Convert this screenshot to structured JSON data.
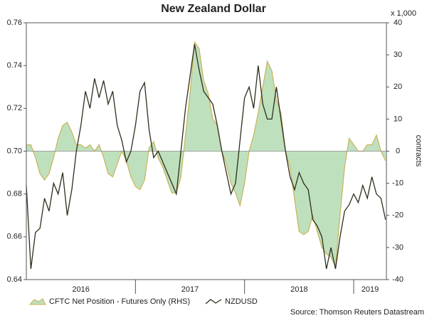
{
  "chart_data": {
    "type": "line",
    "title": "New Zealand Dollar",
    "y2_unit_label": "x 1,000",
    "y2label": "contracts",
    "source": "Source: Thomson Reuters Datastream",
    "x": [
      2016,
      2016.0417,
      2016.0833,
      2016.125,
      2016.1667,
      2016.2083,
      2016.25,
      2016.2917,
      2016.3333,
      2016.375,
      2016.4167,
      2016.4583,
      2016.5,
      2016.5417,
      2016.5833,
      2016.625,
      2016.6667,
      2016.7083,
      2016.75,
      2016.7917,
      2016.8333,
      2016.875,
      2016.9167,
      2016.9583,
      2017,
      2017.0417,
      2017.0833,
      2017.125,
      2017.1667,
      2017.2083,
      2017.25,
      2017.2917,
      2017.3333,
      2017.375,
      2017.4167,
      2017.4583,
      2017.5,
      2017.5417,
      2017.5833,
      2017.625,
      2017.6667,
      2017.7083,
      2017.75,
      2017.7917,
      2017.8333,
      2017.875,
      2017.9167,
      2017.9583,
      2018,
      2018.0417,
      2018.0833,
      2018.125,
      2018.1667,
      2018.2083,
      2018.25,
      2018.2917,
      2018.3333,
      2018.375,
      2018.4167,
      2018.4583,
      2018.5,
      2018.5417,
      2018.5833,
      2018.625,
      2018.6667,
      2018.7083,
      2018.75,
      2018.7917,
      2018.8333,
      2018.875,
      2018.9167,
      2018.9583,
      2019,
      2019.0417,
      2019.0833,
      2019.125,
      2019.1667,
      2019.2083,
      2019.25,
      2019.2917
    ],
    "xlim": [
      2016,
      2019.3
    ],
    "xticks": [
      {
        "value": 2016.5,
        "label": "2016"
      },
      {
        "value": 2017.5,
        "label": "2017"
      },
      {
        "value": 2018.5,
        "label": "2018"
      },
      {
        "value": 2019.15,
        "label": "2019"
      }
    ],
    "ylim": [
      0.64,
      0.76
    ],
    "yticks": [
      0.64,
      0.66,
      0.68,
      {
        "value": 0.7,
        "label": "0.70"
      },
      0.72,
      0.74,
      0.76
    ],
    "y2lim": [
      -40,
      40
    ],
    "y2ticks": [
      -40,
      -30,
      -20,
      -10,
      0,
      10,
      20,
      30,
      40
    ],
    "series": [
      {
        "name": "CFTC Net Position - Futures Only (RHS)",
        "type": "area",
        "axis": "y2",
        "color": "#bfe0bd",
        "edge_color": "#c9b45a",
        "values": [
          2,
          2,
          -2,
          -7,
          -9,
          -7,
          -2,
          4,
          8,
          9,
          6,
          2,
          2,
          1,
          2,
          0,
          2,
          -2,
          -7,
          -8,
          -4,
          0,
          -3,
          -8,
          -11,
          -12,
          -9,
          1,
          3,
          -2,
          -5,
          -9,
          -13,
          -13,
          -8,
          5,
          18,
          34,
          32,
          22,
          18,
          10,
          8,
          0,
          -4,
          -10,
          -13,
          -17,
          -10,
          0,
          5,
          12,
          20,
          28,
          25,
          16,
          12,
          0,
          -5,
          -15,
          -25,
          -26,
          -25,
          -20,
          -25,
          -30,
          -32,
          -33,
          -36,
          -20,
          -5,
          4,
          2,
          0,
          0,
          2,
          2,
          5,
          0,
          -3
        ]
      },
      {
        "name": "NZDUSD",
        "type": "line",
        "color": "#2e2e1c",
        "values": [
          0.684,
          0.645,
          0.662,
          0.664,
          0.678,
          0.672,
          0.685,
          0.68,
          0.69,
          0.67,
          0.682,
          0.7,
          0.712,
          0.728,
          0.72,
          0.734,
          0.725,
          0.733,
          0.722,
          0.728,
          0.712,
          0.705,
          0.695,
          0.7,
          0.712,
          0.728,
          0.732,
          0.71,
          0.697,
          0.7,
          0.695,
          0.69,
          0.685,
          0.68,
          0.7,
          0.72,
          0.735,
          0.75,
          0.738,
          0.728,
          0.725,
          0.722,
          0.712,
          0.7,
          0.69,
          0.68,
          0.685,
          0.705,
          0.725,
          0.73,
          0.72,
          0.74,
          0.722,
          0.715,
          0.715,
          0.73,
          0.715,
          0.7,
          0.688,
          0.682,
          0.69,
          0.685,
          0.682,
          0.668,
          0.665,
          0.66,
          0.645,
          0.655,
          0.645,
          0.66,
          0.672,
          0.675,
          0.68,
          0.676,
          0.684,
          0.678,
          0.688,
          0.68,
          0.678,
          0.668
        ]
      }
    ]
  }
}
